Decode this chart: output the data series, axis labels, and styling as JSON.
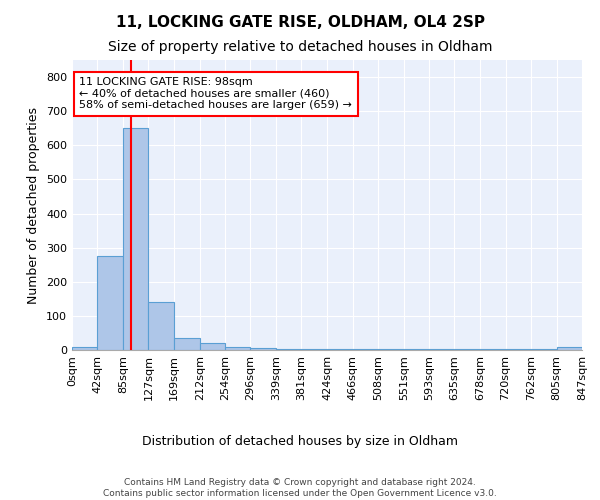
{
  "title": "11, LOCKING GATE RISE, OLDHAM, OL4 2SP",
  "subtitle": "Size of property relative to detached houses in Oldham",
  "xlabel": "Distribution of detached houses by size in Oldham",
  "ylabel": "Number of detached properties",
  "bin_edges": [
    0,
    42,
    85,
    127,
    169,
    212,
    254,
    296,
    339,
    381,
    424,
    466,
    508,
    551,
    593,
    635,
    678,
    720,
    762,
    805,
    847
  ],
  "bar_heights": [
    10,
    275,
    650,
    140,
    35,
    20,
    8,
    5,
    4,
    4,
    4,
    4,
    3,
    3,
    3,
    4,
    3,
    3,
    3,
    8
  ],
  "bar_color": "#aec6e8",
  "bar_edge_color": "#5a9fd4",
  "red_line_x": 98,
  "annotation_line1": "11 LOCKING GATE RISE: 98sqm",
  "annotation_line2": "← 40% of detached houses are smaller (460)",
  "annotation_line3": "58% of semi-detached houses are larger (659) →",
  "annotation_box_color": "white",
  "annotation_box_edge_color": "red",
  "ylim": [
    0,
    850
  ],
  "yticks": [
    0,
    100,
    200,
    300,
    400,
    500,
    600,
    700,
    800
  ],
  "background_color": "#eaf0fb",
  "grid_color": "white",
  "footer_text": "Contains HM Land Registry data © Crown copyright and database right 2024.\nContains public sector information licensed under the Open Government Licence v3.0.",
  "title_fontsize": 11,
  "subtitle_fontsize": 10,
  "xlabel_fontsize": 9,
  "ylabel_fontsize": 9,
  "tick_fontsize": 8,
  "annotation_fontsize": 8
}
